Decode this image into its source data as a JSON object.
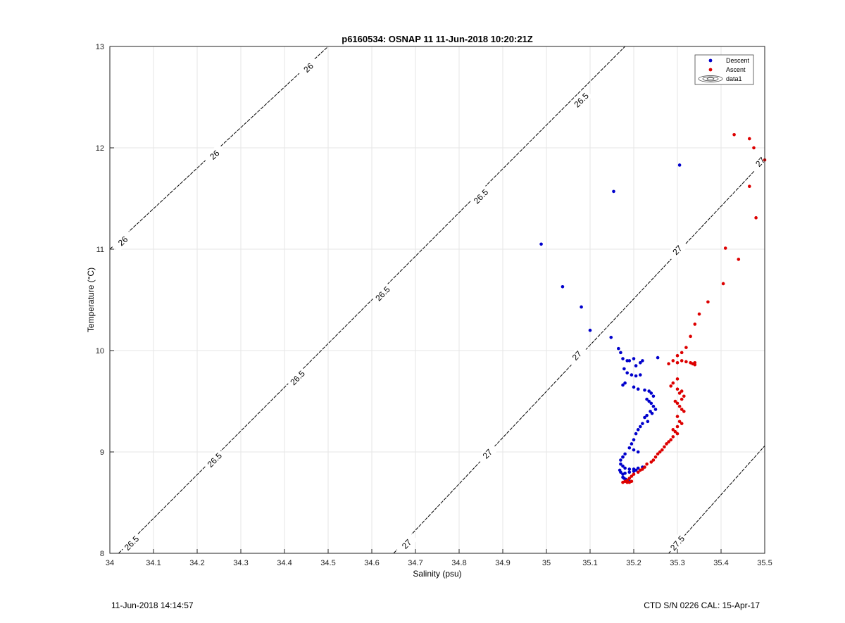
{
  "chart_data": {
    "type": "scatter",
    "title": "p6160534: OSNAP 11 11-Jun-2018 10:20:21Z",
    "xlabel": "Salinity (psu)",
    "ylabel": "Temperature (°C)",
    "xlim": [
      34,
      35.5
    ],
    "ylim": [
      8,
      13
    ],
    "xticks": [
      "34",
      "34.1",
      "34.2",
      "34.3",
      "34.4",
      "34.5",
      "34.6",
      "34.7",
      "34.8",
      "34.9",
      "35",
      "35.1",
      "35.2",
      "35.3",
      "35.4",
      "35.5"
    ],
    "yticks": [
      "8",
      "9",
      "10",
      "11",
      "12",
      "13"
    ],
    "grid": true,
    "legend_position": "top-right",
    "legend": [
      "Descent",
      "Ascent",
      "data1"
    ],
    "series": [
      {
        "name": "Descent",
        "color": "#0000cc",
        "x": [
          34.988,
          35.037,
          35.08,
          35.1,
          35.154,
          35.305,
          35.148,
          35.165,
          35.17,
          35.175,
          35.185,
          35.19,
          35.2,
          35.205,
          35.215,
          35.22,
          35.255,
          35.178,
          35.185,
          35.195,
          35.205,
          35.215,
          35.18,
          35.175,
          35.2,
          35.21,
          35.225,
          35.235,
          35.24,
          35.245,
          35.23,
          35.235,
          35.24,
          35.245,
          35.25,
          35.238,
          35.242,
          35.23,
          35.225,
          35.232,
          35.22,
          35.215,
          35.21,
          35.205,
          35.2,
          35.195,
          35.19,
          35.2,
          35.21,
          35.18,
          35.175,
          35.17,
          35.17,
          35.175,
          35.18,
          35.19,
          35.2,
          35.21,
          35.22,
          35.175,
          35.168,
          35.17,
          35.175,
          35.18,
          35.19,
          35.2,
          35.205,
          35.175,
          35.178,
          35.182,
          35.188
        ],
        "y": [
          11.05,
          10.63,
          10.43,
          10.2,
          11.57,
          11.83,
          10.13,
          10.02,
          9.98,
          9.92,
          9.9,
          9.9,
          9.92,
          9.85,
          9.88,
          9.9,
          9.93,
          9.82,
          9.78,
          9.76,
          9.75,
          9.76,
          9.68,
          9.66,
          9.64,
          9.62,
          9.61,
          9.6,
          9.58,
          9.55,
          9.52,
          9.5,
          9.48,
          9.45,
          9.42,
          9.4,
          9.38,
          9.36,
          9.34,
          9.3,
          9.28,
          9.25,
          9.22,
          9.18,
          9.12,
          9.08,
          9.04,
          9.02,
          9.0,
          8.98,
          8.95,
          8.92,
          8.88,
          8.86,
          8.84,
          8.83,
          8.83,
          8.84,
          8.85,
          8.95,
          8.82,
          8.8,
          8.78,
          8.79,
          8.8,
          8.81,
          8.82,
          8.75,
          8.74,
          8.73,
          8.72
        ]
      },
      {
        "name": "Ascent",
        "color": "#dd0000",
        "x": [
          35.43,
          35.465,
          35.475,
          35.5,
          35.465,
          35.48,
          35.41,
          35.44,
          35.405,
          35.37,
          35.35,
          35.34,
          35.33,
          35.32,
          35.31,
          35.3,
          35.29,
          35.28,
          35.3,
          35.31,
          35.32,
          35.33,
          35.335,
          35.34,
          35.34,
          35.3,
          35.29,
          35.285,
          35.3,
          35.31,
          35.305,
          35.315,
          35.31,
          35.295,
          35.3,
          35.305,
          35.31,
          35.315,
          35.3,
          35.305,
          35.31,
          35.3,
          35.29,
          35.295,
          35.3,
          35.29,
          35.285,
          35.28,
          35.275,
          35.27,
          35.265,
          35.26,
          35.255,
          35.25,
          35.245,
          35.24,
          35.23,
          35.225,
          35.22,
          35.215,
          35.21,
          35.2,
          35.195,
          35.19,
          35.185,
          35.18,
          35.175,
          35.185,
          35.19,
          35.195
        ],
        "y": [
          12.13,
          12.09,
          12.0,
          11.88,
          11.62,
          11.31,
          11.01,
          10.9,
          10.66,
          10.48,
          10.36,
          10.26,
          10.14,
          10.03,
          9.98,
          9.95,
          9.9,
          9.87,
          9.88,
          9.9,
          9.89,
          9.88,
          9.87,
          9.86,
          9.88,
          9.72,
          9.68,
          9.65,
          9.62,
          9.6,
          9.58,
          9.55,
          9.52,
          9.5,
          9.48,
          9.45,
          9.42,
          9.4,
          9.35,
          9.3,
          9.28,
          9.25,
          9.22,
          9.2,
          9.18,
          9.15,
          9.12,
          9.1,
          9.08,
          9.05,
          9.02,
          9.0,
          8.98,
          8.95,
          8.92,
          8.9,
          8.88,
          8.85,
          8.83,
          8.82,
          8.8,
          8.78,
          8.76,
          8.74,
          8.72,
          8.71,
          8.7,
          8.7,
          8.7,
          8.71
        ]
      }
    ],
    "contours": [
      {
        "label": "26",
        "color": "#000000",
        "x": [
          34.0,
          34.5
        ],
        "y": [
          11.0,
          13.0
        ],
        "label_points": [
          [
            34.03,
            11.08
          ],
          [
            34.24,
            11.93
          ],
          [
            34.455,
            12.79
          ]
        ]
      },
      {
        "label": "26.5",
        "color": "#000000",
        "x": [
          34.02,
          35.18
        ],
        "y": [
          8.0,
          13.0
        ],
        "label_points": [
          [
            34.05,
            8.1
          ],
          [
            34.24,
            8.92
          ],
          [
            34.43,
            9.73
          ],
          [
            34.625,
            10.56
          ],
          [
            34.85,
            11.52
          ],
          [
            35.08,
            12.47
          ]
        ]
      },
      {
        "label": "27",
        "color": "#000000",
        "x": [
          34.65,
          35.5
        ],
        "y": [
          8.0,
          11.88
        ],
        "label_points": [
          [
            34.68,
            8.09
          ],
          [
            34.865,
            8.98
          ],
          [
            35.07,
            9.95
          ],
          [
            35.3,
            10.99
          ],
          [
            35.49,
            11.86
          ]
        ]
      },
      {
        "label": "27.5",
        "color": "#000000",
        "x": [
          35.28,
          35.5
        ],
        "y": [
          8.0,
          9.06
        ],
        "label_points": [
          [
            35.3,
            8.1
          ]
        ]
      }
    ]
  },
  "footer": {
    "left": "11-Jun-2018 14:14:57",
    "right": "CTD S/N 0226  CAL: 15-Apr-17"
  }
}
